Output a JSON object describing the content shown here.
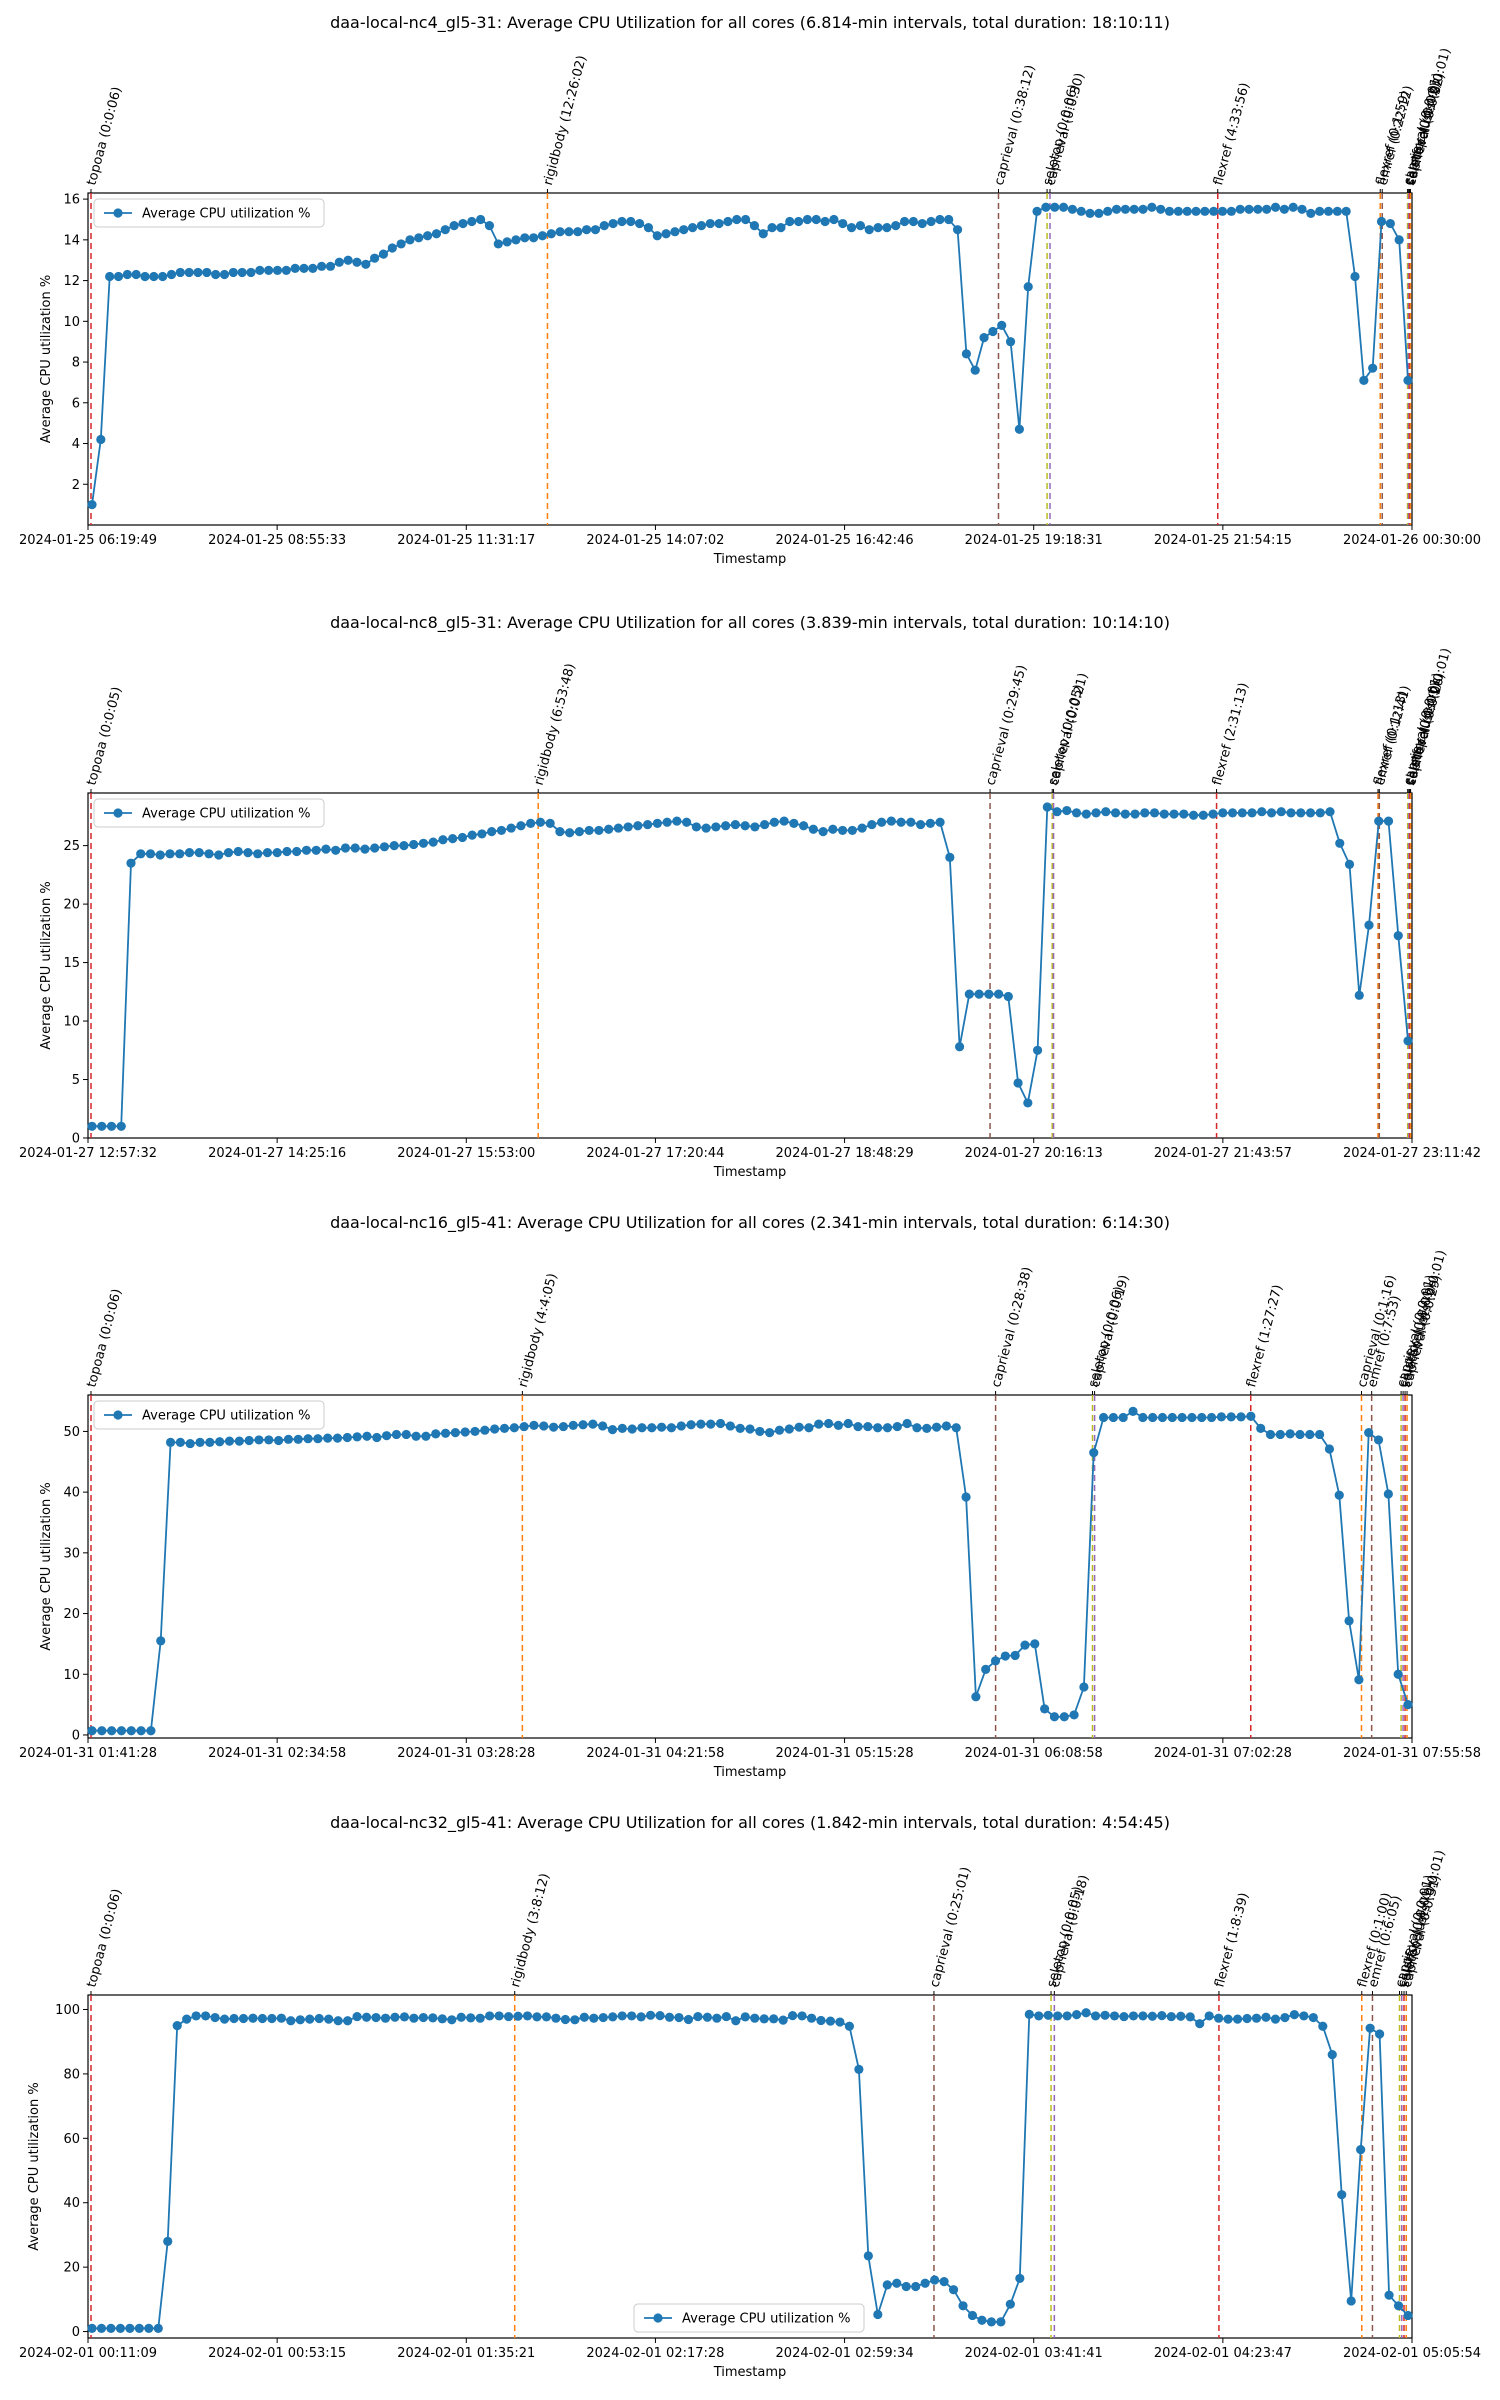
{
  "chart_data": [
    {
      "type": "line",
      "title": "daa-local-nc4_gl5-31: Average CPU Utilization for all cores (6.814-min intervals, total duration: 18:10:11)",
      "xlabel": "Timestamp",
      "ylabel": "Average CPU utilization %",
      "ylim": [
        0,
        16.3
      ],
      "yticks": [
        2,
        4,
        6,
        8,
        10,
        12,
        14,
        16
      ],
      "xticks": [
        "2024-01-25 06:19:49",
        "2024-01-25 08:55:33",
        "2024-01-25 11:31:17",
        "2024-01-25 14:07:02",
        "2024-01-25 16:42:46",
        "2024-01-25 19:18:31",
        "2024-01-25 21:54:15",
        "2024-01-26 00:30:00"
      ],
      "legend": {
        "label": "Average CPU utilization %",
        "position": "upper-left"
      },
      "series": [
        {
          "name": "Average CPU utilization %",
          "values": [
            1.0,
            4.2,
            12.2,
            12.2,
            12.3,
            12.3,
            12.2,
            12.2,
            12.2,
            12.3,
            12.4,
            12.4,
            12.4,
            12.4,
            12.3,
            12.3,
            12.4,
            12.4,
            12.4,
            12.5,
            12.5,
            12.5,
            12.5,
            12.6,
            12.6,
            12.6,
            12.7,
            12.7,
            12.9,
            13.0,
            12.9,
            12.8,
            13.1,
            13.3,
            13.6,
            13.8,
            14.0,
            14.1,
            14.2,
            14.3,
            14.5,
            14.7,
            14.8,
            14.9,
            15.0,
            14.7,
            13.8,
            13.9,
            14.0,
            14.1,
            14.1,
            14.2,
            14.3,
            14.4,
            14.4,
            14.4,
            14.5,
            14.5,
            14.7,
            14.8,
            14.9,
            14.9,
            14.8,
            14.6,
            14.2,
            14.3,
            14.4,
            14.5,
            14.6,
            14.7,
            14.8,
            14.8,
            14.9,
            15.0,
            15.0,
            14.7,
            14.3,
            14.6,
            14.6,
            14.9,
            14.9,
            15.0,
            15.0,
            14.9,
            15.0,
            14.8,
            14.6,
            14.7,
            14.5,
            14.6,
            14.6,
            14.7,
            14.9,
            14.9,
            14.8,
            14.9,
            15.0,
            15.0,
            14.5,
            8.4,
            7.6,
            9.2,
            9.5,
            9.8,
            9.0,
            4.7,
            11.7,
            15.4,
            15.6,
            15.6,
            15.6,
            15.5,
            15.4,
            15.3,
            15.3,
            15.4,
            15.5,
            15.5,
            15.5,
            15.5,
            15.6,
            15.5,
            15.4,
            15.4,
            15.4,
            15.4,
            15.4,
            15.4,
            15.4,
            15.4,
            15.5,
            15.5,
            15.5,
            15.5,
            15.6,
            15.5,
            15.6,
            15.5,
            15.3,
            15.4,
            15.4,
            15.4,
            15.4,
            12.2,
            7.1,
            7.7,
            14.9,
            14.8,
            14.0,
            7.1
          ]
        }
      ],
      "stages": [
        {
          "label": "topoaa (0:0:06)",
          "t": 0.0
        },
        {
          "label": "rigidbody (12:26:02)",
          "t": 0.3458
        },
        {
          "label": "caprieval (0:38:12)",
          "t": 0.6875
        },
        {
          "label": "seletop (0:0:06)",
          "t": 0.7243
        },
        {
          "label": "caprieval (0:0:30)",
          "t": 0.7265
        },
        {
          "label": "flexref (4:33:56)",
          "t": 0.8536
        },
        {
          "label": "flexref (0:1:59)",
          "t": 0.9767
        },
        {
          "label": "emref (0:22:12)",
          "t": 0.9782
        },
        {
          "label": "caprieval (0:0:01)",
          "t": 0.9974
        },
        {
          "label": "clustfcc (0:0:02)",
          "t": 0.9982
        },
        {
          "label": "seletopclusts (0:0:01)",
          "t": 0.9989
        },
        {
          "label": "caprieval (0:0:32)",
          "t": 0.9996
        }
      ]
    },
    {
      "type": "line",
      "title": "daa-local-nc8_gl5-31: Average CPU Utilization for all cores (3.839-min intervals, total duration: 10:14:10)",
      "xlabel": "Timestamp",
      "ylabel": "Average CPU utilization %",
      "ylim": [
        0,
        29.5
      ],
      "yticks": [
        0,
        5,
        10,
        15,
        20,
        25
      ],
      "xticks": [
        "2024-01-27 12:57:32",
        "2024-01-27 14:25:16",
        "2024-01-27 15:53:00",
        "2024-01-27 17:20:44",
        "2024-01-27 18:48:29",
        "2024-01-27 20:16:13",
        "2024-01-27 21:43:57",
        "2024-01-27 23:11:42"
      ],
      "legend": {
        "label": "Average CPU utilization %",
        "position": "upper-left"
      },
      "series": [
        {
          "name": "Average CPU utilization %",
          "values": [
            1.0,
            1.0,
            1.0,
            1.0,
            23.5,
            24.3,
            24.3,
            24.2,
            24.3,
            24.3,
            24.4,
            24.4,
            24.3,
            24.2,
            24.4,
            24.5,
            24.4,
            24.3,
            24.4,
            24.4,
            24.5,
            24.5,
            24.6,
            24.6,
            24.7,
            24.6,
            24.8,
            24.8,
            24.7,
            24.8,
            24.9,
            25.0,
            25.0,
            25.1,
            25.2,
            25.3,
            25.5,
            25.6,
            25.7,
            25.9,
            26.0,
            26.2,
            26.3,
            26.5,
            26.7,
            26.9,
            27.0,
            26.9,
            26.2,
            26.1,
            26.2,
            26.3,
            26.3,
            26.4,
            26.5,
            26.6,
            26.7,
            26.8,
            26.9,
            27.0,
            27.1,
            27.0,
            26.6,
            26.5,
            26.6,
            26.7,
            26.8,
            26.7,
            26.6,
            26.8,
            27.0,
            27.1,
            26.9,
            26.7,
            26.4,
            26.2,
            26.4,
            26.3,
            26.3,
            26.5,
            26.8,
            27.0,
            27.1,
            27.0,
            27.0,
            26.8,
            26.9,
            27.0,
            24.0,
            7.8,
            12.3,
            12.3,
            12.3,
            12.3,
            12.1,
            4.7,
            3.0,
            7.5,
            28.3,
            27.9,
            28.0,
            27.8,
            27.7,
            27.8,
            27.9,
            27.8,
            27.7,
            27.7,
            27.8,
            27.8,
            27.7,
            27.7,
            27.7,
            27.6,
            27.6,
            27.7,
            27.8,
            27.8,
            27.8,
            27.8,
            27.9,
            27.8,
            27.9,
            27.8,
            27.8,
            27.8,
            27.8,
            27.9,
            25.2,
            23.4,
            12.2,
            18.2,
            27.1,
            27.1,
            17.3,
            8.3
          ]
        }
      ],
      "stages": [
        {
          "label": "topoaa (0:0:05)",
          "t": 0.0
        },
        {
          "label": "rigidbody (6:53:48)",
          "t": 0.3388
        },
        {
          "label": "caprieval (0:29:45)",
          "t": 0.6811
        },
        {
          "label": "seletop (0:0:05)",
          "t": 0.7282
        },
        {
          "label": "caprieval (0:0:21)",
          "t": 0.7292
        },
        {
          "label": "flexref (2:31:13)",
          "t": 0.8527
        },
        {
          "label": "flexref (0:1:13)",
          "t": 0.975
        },
        {
          "label": "emref (0:12:41)",
          "t": 0.976
        },
        {
          "label": "caprieval (0:0:01)",
          "t": 0.9975
        },
        {
          "label": "clustfcc (0:0:01)",
          "t": 0.9984
        },
        {
          "label": "seletopclusts (0:0:01)",
          "t": 0.9991
        },
        {
          "label": "caprieval (0:0:26)",
          "t": 0.9997
        }
      ]
    },
    {
      "type": "line",
      "title": "daa-local-nc16_gl5-41: Average CPU Utilization for all cores (2.341-min intervals, total duration: 6:14:30)",
      "xlabel": "Timestamp",
      "ylabel": "Average CPU utilization %",
      "ylim": [
        -0.5,
        56
      ],
      "yticks": [
        0,
        10,
        20,
        30,
        40,
        50
      ],
      "xticks": [
        "2024-01-31 01:41:28",
        "2024-01-31 02:34:58",
        "2024-01-31 03:28:28",
        "2024-01-31 04:21:58",
        "2024-01-31 05:15:28",
        "2024-01-31 06:08:58",
        "2024-01-31 07:02:28",
        "2024-01-31 07:55:58"
      ],
      "legend": {
        "label": "Average CPU utilization %",
        "position": "upper-left"
      },
      "series": [
        {
          "name": "Average CPU utilization %",
          "values": [
            0.7,
            0.7,
            0.7,
            0.7,
            0.7,
            0.7,
            0.7,
            15.5,
            48.2,
            48.2,
            48.0,
            48.2,
            48.2,
            48.3,
            48.4,
            48.4,
            48.5,
            48.6,
            48.6,
            48.5,
            48.7,
            48.7,
            48.8,
            48.8,
            48.9,
            48.9,
            49.0,
            49.1,
            49.2,
            49.0,
            49.3,
            49.5,
            49.5,
            49.2,
            49.2,
            49.6,
            49.7,
            49.8,
            49.9,
            50.0,
            50.2,
            50.4,
            50.5,
            50.6,
            50.8,
            51.0,
            50.9,
            50.7,
            50.8,
            51.0,
            51.1,
            51.2,
            50.9,
            50.3,
            50.5,
            50.4,
            50.6,
            50.6,
            50.7,
            50.6,
            50.9,
            51.1,
            51.2,
            51.2,
            51.3,
            50.9,
            50.5,
            50.4,
            50.0,
            49.8,
            50.2,
            50.4,
            50.7,
            50.6,
            51.2,
            51.3,
            51.0,
            51.3,
            50.8,
            50.8,
            50.6,
            50.6,
            50.8,
            51.3,
            50.6,
            50.5,
            50.7,
            50.9,
            50.6,
            39.2,
            6.3,
            10.8,
            12.2,
            13.0,
            13.1,
            14.8,
            15.0,
            4.3,
            3.0,
            3.0,
            3.3,
            7.9,
            46.5,
            52.3,
            52.3,
            52.3,
            53.3,
            52.3,
            52.3,
            52.3,
            52.3,
            52.3,
            52.3,
            52.3,
            52.3,
            52.4,
            52.4,
            52.4,
            52.5,
            50.5,
            49.5,
            49.5,
            49.6,
            49.5,
            49.5,
            49.5,
            47.1,
            39.5,
            18.8,
            9.1,
            49.8,
            48.6,
            39.7,
            10.0,
            5.0
          ]
        }
      ],
      "stages": [
        {
          "label": "topoaa (0:0:06)",
          "t": 0.0
        },
        {
          "label": "rigidbody (4:4:05)",
          "t": 0.3268
        },
        {
          "label": "caprieval (0:28:38)",
          "t": 0.6853
        },
        {
          "label": "seletop (0:0:06)",
          "t": 0.7587
        },
        {
          "label": "caprieval (0:0:19)",
          "t": 0.7603
        },
        {
          "label": "flexref (1:27:27)",
          "t": 0.8786
        },
        {
          "label": "caprieval (0:1:16)",
          "t": 0.9625
        },
        {
          "label": "emref (0:7:53)",
          "t": 0.9702
        },
        {
          "label": "caprieval (0:0:01)",
          "t": 0.9925
        },
        {
          "label": "clustfcc (0:0:01)",
          "t": 0.994
        },
        {
          "label": "seletopclusts (0:0:01)",
          "t": 0.9955
        },
        {
          "label": "caprieval (0:0:29)",
          "t": 0.997
        }
      ]
    },
    {
      "type": "line",
      "title": "daa-local-nc32_gl5-41: Average CPU Utilization for all cores (1.842-min intervals, total duration: 4:54:45)",
      "xlabel": "Timestamp",
      "ylabel": "Average CPU utilization %",
      "ylim": [
        -2,
        104.5
      ],
      "yticks": [
        0,
        20,
        40,
        60,
        80,
        100
      ],
      "xticks": [
        "2024-02-01 00:11:09",
        "2024-02-01 00:53:15",
        "2024-02-01 01:35:21",
        "2024-02-01 02:17:28",
        "2024-02-01 02:59:34",
        "2024-02-01 03:41:41",
        "2024-02-01 04:23:47",
        "2024-02-01 05:05:54"
      ],
      "legend": {
        "label": "Average CPU utilization %",
        "position": "lower-center"
      },
      "series": [
        {
          "name": "Average CPU utilization %",
          "values": [
            1.0,
            1.0,
            1.0,
            1.0,
            1.0,
            1.0,
            1.0,
            1.0,
            28.0,
            95.0,
            97.0,
            98.0,
            98.0,
            97.5,
            97.0,
            97.2,
            97.2,
            97.3,
            97.2,
            97.2,
            97.3,
            96.5,
            96.8,
            97.0,
            97.2,
            97.0,
            96.5,
            96.5,
            97.8,
            97.6,
            97.5,
            97.3,
            97.6,
            97.7,
            97.3,
            97.5,
            97.4,
            97.1,
            96.8,
            97.6,
            97.4,
            97.3,
            98.0,
            98.0,
            97.8,
            97.9,
            98.0,
            97.7,
            97.7,
            97.3,
            96.9,
            96.8,
            97.6,
            97.3,
            97.5,
            97.7,
            98.0,
            98.0,
            97.7,
            98.2,
            98.1,
            97.6,
            97.5,
            96.9,
            97.8,
            97.6,
            97.3,
            97.8,
            96.5,
            97.7,
            97.3,
            97.1,
            97.1,
            96.7,
            98.1,
            98.0,
            97.3,
            96.6,
            96.4,
            96.1,
            94.8,
            81.4,
            23.5,
            5.3,
            14.5,
            15.0,
            14.0,
            14.0,
            15.0,
            16.0,
            15.5,
            13.0,
            8.0,
            5.0,
            3.5,
            3.0,
            3.0,
            8.5,
            16.5,
            98.5,
            98.0,
            98.2,
            98.0,
            98.0,
            98.4,
            99.0,
            98.0,
            98.2,
            98.0,
            97.8,
            98.0,
            98.0,
            97.9,
            98.1,
            97.8,
            97.9,
            97.7,
            95.6,
            98.0,
            97.3,
            97.0,
            97.0,
            97.2,
            97.3,
            97.6,
            97.0,
            97.5,
            98.4,
            98.0,
            97.5,
            94.8,
            86.0,
            42.5,
            9.5,
            56.5,
            94.2,
            92.4,
            11.3,
            8.0,
            5.0
          ]
        }
      ],
      "stages": [
        {
          "label": "topoaa (0:0:06)",
          "t": 0.0
        },
        {
          "label": "rigidbody (3:8:12)",
          "t": 0.321
        },
        {
          "label": "caprieval (0:25:01)",
          "t": 0.6386
        },
        {
          "label": "seletop (0:0:05)",
          "t": 0.7273
        },
        {
          "label": "caprieval (0:0:18)",
          "t": 0.7298
        },
        {
          "label": "flexref (1:8:39)",
          "t": 0.8545
        },
        {
          "label": "flexref (0:1:00)",
          "t": 0.9627
        },
        {
          "label": "emref (0:6:05)",
          "t": 0.9708
        },
        {
          "label": "caprieval (0:0:01)",
          "t": 0.9913
        },
        {
          "label": "clustfcc (0:0:01)",
          "t": 0.993
        },
        {
          "label": "seletopclusts (0:0:01)",
          "t": 0.9947
        },
        {
          "label": "caprieval (0:0:31)",
          "t": 0.9964
        }
      ]
    }
  ]
}
